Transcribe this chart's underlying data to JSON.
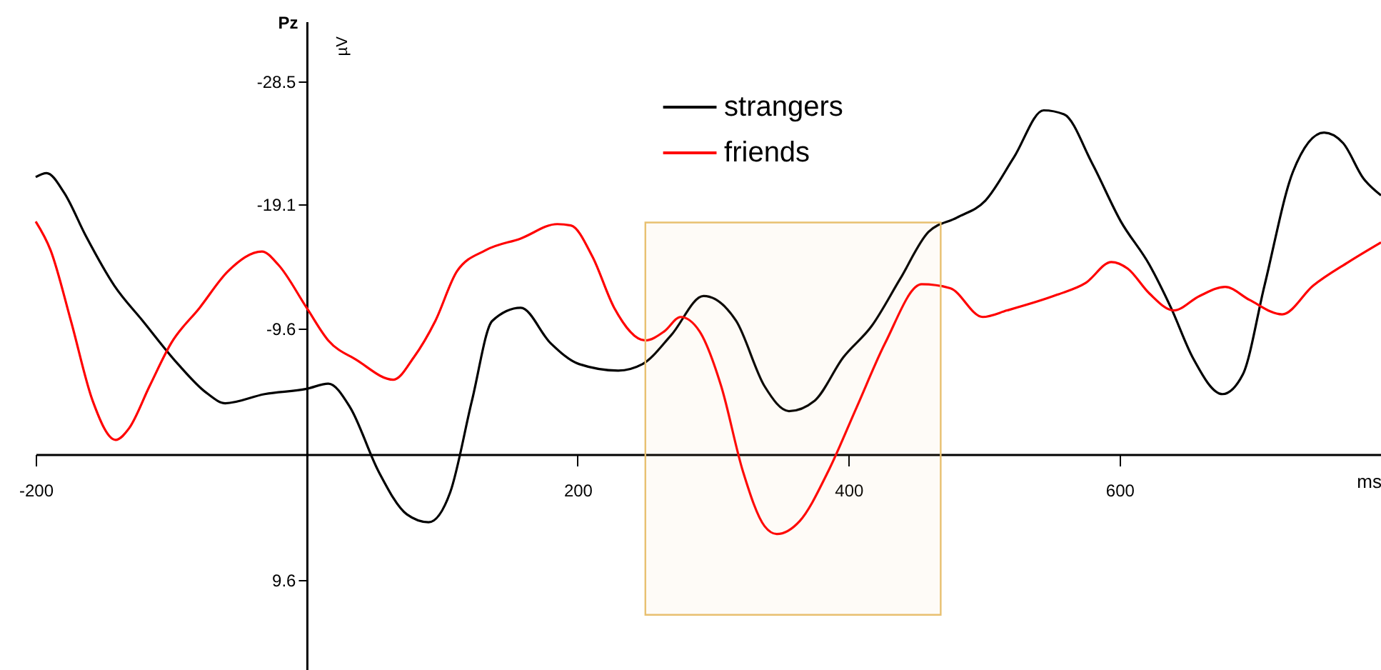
{
  "chart_data": {
    "type": "line",
    "title": "Pz",
    "xlabel": "ms",
    "ylabel": "µV",
    "xlim": [
      -200,
      793
    ],
    "ylim": [
      16.5,
      -33.1
    ],
    "xticks": [
      -200,
      200,
      400,
      600
    ],
    "yticks": [
      -28.5,
      -19.1,
      -9.6,
      9.6
    ],
    "grid": false,
    "legend": "top",
    "marker": "none",
    "line_style": "solid",
    "bands": [
      {
        "axis": "x",
        "from": 250,
        "to": 468,
        "label": null,
        "color": "#e8c070"
      }
    ],
    "series": [
      {
        "name": "strangers",
        "color": "#000000",
        "x": [
          -200,
          -192,
          -179,
          -163,
          -142,
          -121,
          -95,
          -74,
          -60,
          -31,
          0,
          16,
          32,
          53,
          74,
          90,
          106,
          122,
          137,
          158,
          180,
          201,
          230,
          248,
          269,
          293,
          317,
          338,
          356,
          375,
          396,
          417,
          438,
          459,
          480,
          501,
          522,
          544,
          559,
          580,
          601,
          622,
          638,
          654,
          676,
          691,
          707,
          728,
          751,
          765,
          780,
          793
        ],
        "values": [
          -21.2,
          -21.5,
          -20.0,
          -16.7,
          -12.9,
          -10.2,
          -6.9,
          -4.7,
          -3.9,
          -4.6,
          -5.0,
          -5.4,
          -3.6,
          1.3,
          4.6,
          5.2,
          2.9,
          -4.1,
          -10.2,
          -11.2,
          -8.5,
          -6.9,
          -6.4,
          -6.9,
          -9.1,
          -12.1,
          -10.2,
          -5.2,
          -3.3,
          -4.1,
          -7.4,
          -9.8,
          -13.4,
          -17.0,
          -18.1,
          -19.4,
          -22.7,
          -26.3,
          -26.0,
          -22.2,
          -17.8,
          -14.5,
          -11.2,
          -7.4,
          -4.6,
          -6.1,
          -12.9,
          -21.6,
          -24.6,
          -23.8,
          -21.1,
          -19.8
        ]
      },
      {
        "name": "friends",
        "color": "#ff0000",
        "x": [
          -200,
          -189,
          -174,
          -158,
          -141,
          -131,
          -116,
          -100,
          -79,
          -58,
          -33,
          -21,
          0,
          16,
          37,
          64,
          79,
          95,
          111,
          132,
          158,
          185,
          195,
          211,
          227,
          250,
          264,
          276,
          290,
          306,
          322,
          338,
          347,
          364,
          385,
          406,
          427,
          454,
          475,
          499,
          517,
          554,
          575,
          594,
          606,
          622,
          640,
          659,
          678,
          696,
          720,
          743,
          769,
          793
        ],
        "values": [
          -17.8,
          -15.6,
          -10.2,
          -4.1,
          -1.1,
          -2.0,
          -5.2,
          -8.5,
          -11.2,
          -14.0,
          -15.5,
          -14.5,
          -11.2,
          -8.7,
          -7.2,
          -5.7,
          -7.4,
          -10.2,
          -14.0,
          -15.6,
          -16.5,
          -17.6,
          -17.5,
          -15.1,
          -11.2,
          -8.7,
          -9.4,
          -10.5,
          -9.4,
          -5.2,
          1.3,
          5.5,
          6.1,
          5.1,
          1.3,
          -3.6,
          -8.5,
          -13.0,
          -12.7,
          -10.5,
          -11.0,
          -12.2,
          -13.1,
          -14.7,
          -14.2,
          -12.3,
          -11.0,
          -12.1,
          -12.8,
          -11.8,
          -10.7,
          -12.9,
          -14.7,
          -16.2
        ]
      }
    ]
  }
}
